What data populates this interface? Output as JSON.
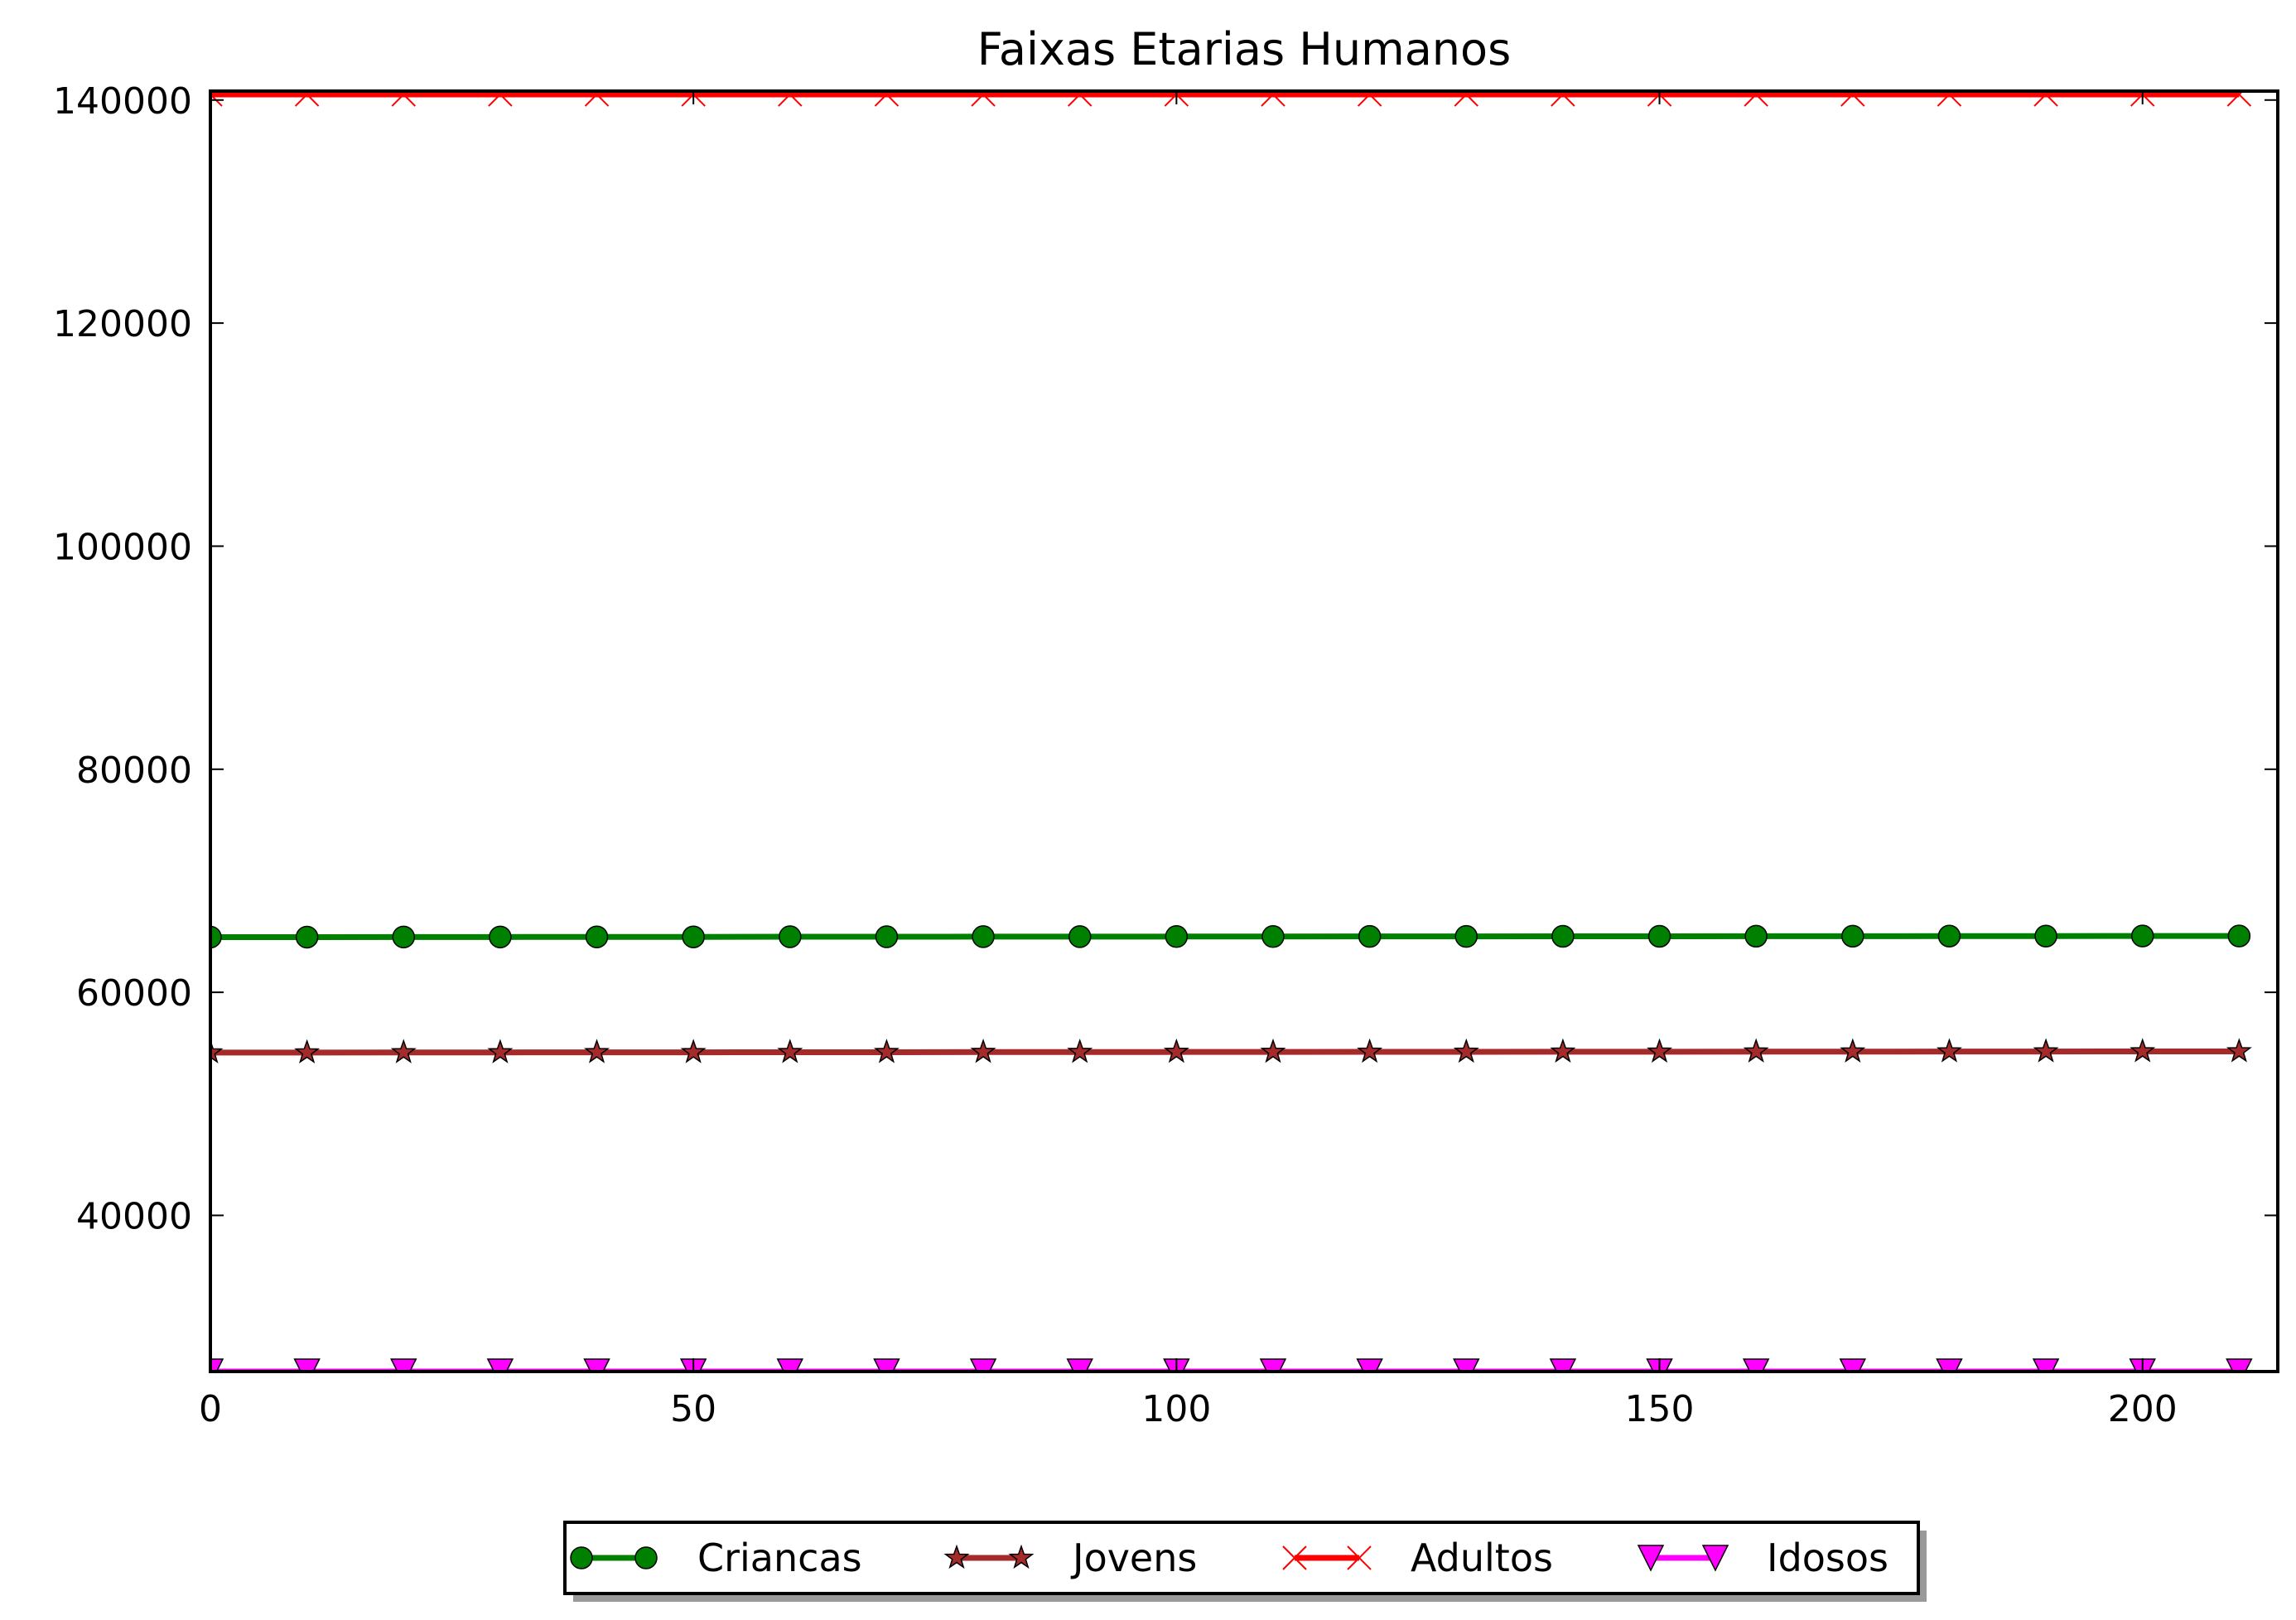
{
  "chart_data": {
    "type": "line",
    "title": "Faixas Etarias Humanos",
    "xlabel": "",
    "ylabel": "",
    "xlim": [
      0,
      214
    ],
    "ylim": [
      26000,
      140800
    ],
    "x_ticks": [
      0,
      50,
      100,
      150,
      200
    ],
    "y_ticks": [
      40000,
      60000,
      80000,
      100000,
      120000,
      140000
    ],
    "grid": false,
    "legend_position": "bottom-center",
    "x": [
      0,
      10,
      20,
      30,
      40,
      50,
      60,
      70,
      80,
      90,
      100,
      110,
      120,
      130,
      140,
      150,
      160,
      170,
      180,
      190,
      200,
      210
    ],
    "series": [
      {
        "name": "Criancas",
        "color": "#008000",
        "marker": "circle",
        "values": [
          64950,
          64950,
          64960,
          64960,
          64970,
          64970,
          64980,
          64980,
          64990,
          64990,
          65000,
          65000,
          65010,
          65010,
          65020,
          65020,
          65030,
          65030,
          65040,
          65040,
          65050,
          65050
        ]
      },
      {
        "name": "Jovens",
        "color": "#a52a2a",
        "marker": "star",
        "values": [
          54600,
          54600,
          54610,
          54610,
          54620,
          54620,
          54630,
          54630,
          54640,
          54640,
          54650,
          54650,
          54660,
          54660,
          54670,
          54670,
          54680,
          54680,
          54690,
          54690,
          54700,
          54700
        ]
      },
      {
        "name": "Adultos",
        "color": "#ff0000",
        "marker": "x",
        "values": [
          140500,
          140500,
          140500,
          140500,
          140500,
          140500,
          140500,
          140500,
          140500,
          140500,
          140500,
          140500,
          140500,
          140500,
          140500,
          140500,
          140500,
          140500,
          140500,
          140500,
          140500,
          140500
        ]
      },
      {
        "name": "Idosos",
        "color": "#ff00ff",
        "marker": "triangle-down",
        "values": [
          26000,
          26000,
          26000,
          26000,
          26000,
          26000,
          26000,
          26000,
          26000,
          26000,
          26000,
          26000,
          26000,
          26000,
          26000,
          26000,
          26000,
          26000,
          26000,
          26000,
          26000,
          26000
        ]
      }
    ]
  }
}
